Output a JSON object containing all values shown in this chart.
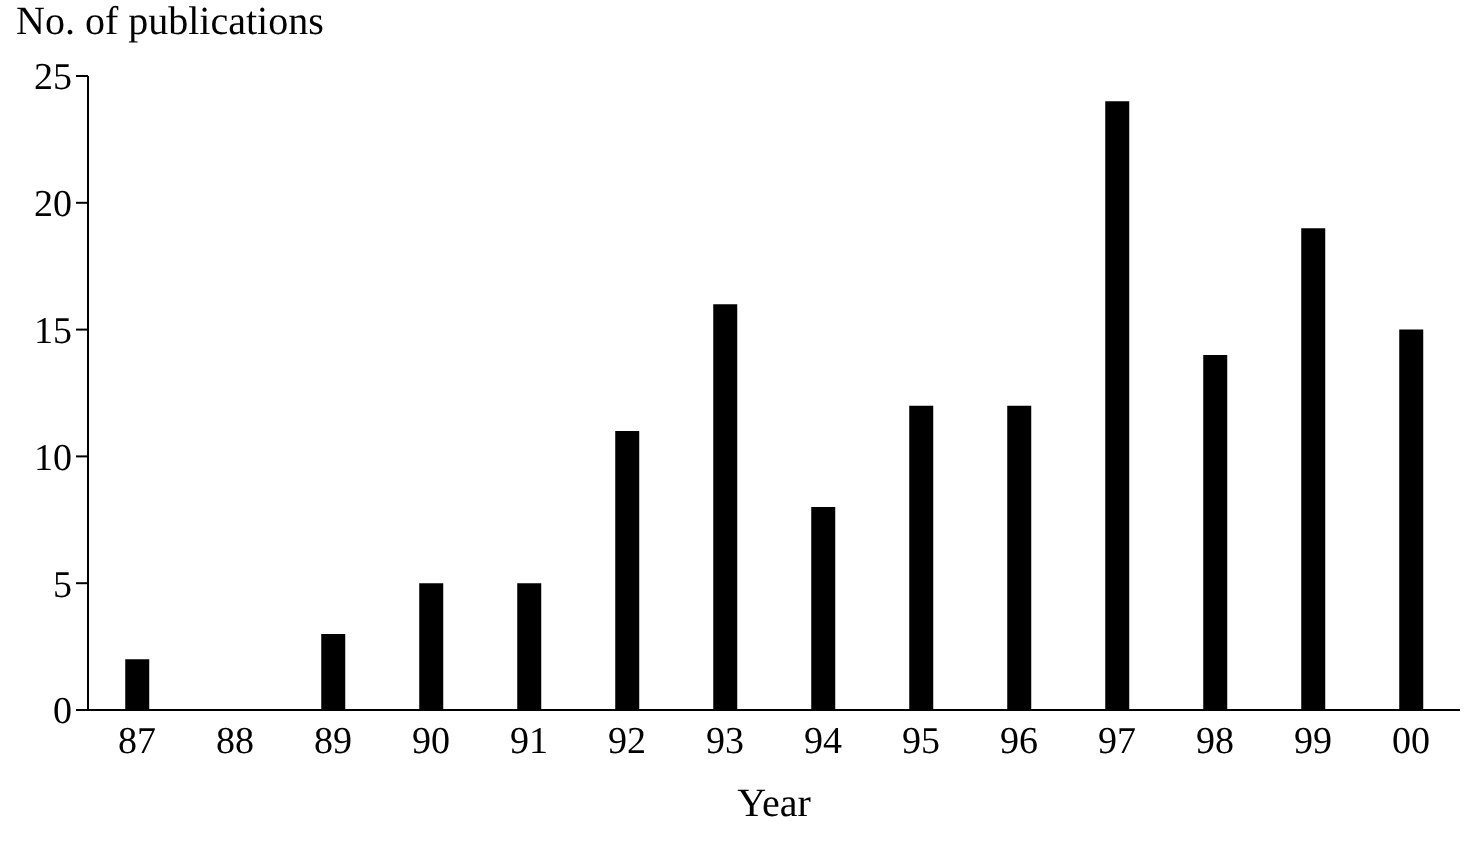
{
  "chart_data": {
    "type": "bar",
    "xlabel": "Year",
    "ylabel": "No. of publications",
    "categories": [
      "87",
      "88",
      "89",
      "90",
      "91",
      "92",
      "93",
      "94",
      "95",
      "96",
      "97",
      "98",
      "99",
      "00"
    ],
    "values": [
      2,
      0,
      3,
      5,
      5,
      11,
      16,
      8,
      12,
      12,
      24,
      14,
      19,
      15
    ],
    "color": "#000000",
    "ylim": [
      0,
      25
    ],
    "yticks": [
      0,
      5,
      10,
      15,
      20,
      25
    ],
    "grid": false,
    "legend": false
  }
}
